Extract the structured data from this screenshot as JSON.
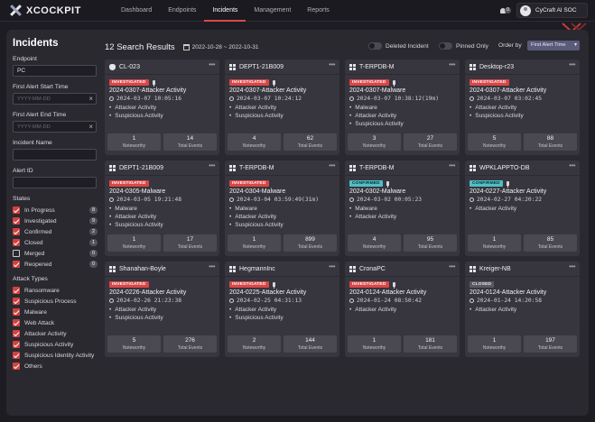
{
  "app": {
    "name": "XCOCKPIT"
  },
  "nav": [
    {
      "label": "Dashboard",
      "active": false
    },
    {
      "label": "Endpoints",
      "active": false
    },
    {
      "label": "Incidents",
      "active": true
    },
    {
      "label": "Management",
      "active": false
    },
    {
      "label": "Reports",
      "active": false
    }
  ],
  "user": {
    "name": "CyCraft AI SOC",
    "notifications": "0"
  },
  "sidebar": {
    "title": "Incidents",
    "endpoint": {
      "label": "Endpoint",
      "value": "PC"
    },
    "start_time": {
      "label": "First Alert Start Time",
      "placeholder": "YYYY-MM-DD"
    },
    "end_time": {
      "label": "First Alert End Time",
      "placeholder": "YYYY-MM-DD"
    },
    "incident_name": {
      "label": "Incident Name",
      "value": ""
    },
    "alert_id": {
      "label": "Alert ID",
      "value": ""
    },
    "states_title": "States",
    "states": [
      {
        "label": "In Progress",
        "checked": true,
        "count": "8"
      },
      {
        "label": "Investigated",
        "checked": true,
        "count": "9"
      },
      {
        "label": "Confirmed",
        "checked": true,
        "count": "2"
      },
      {
        "label": "Closed",
        "checked": true,
        "count": "1"
      },
      {
        "label": "Merged",
        "checked": false,
        "count": "0"
      },
      {
        "label": "Reopened",
        "checked": true,
        "count": "0"
      }
    ],
    "types_title": "Attack Types",
    "types": [
      {
        "label": "Ransomware",
        "checked": true
      },
      {
        "label": "Suspicious Process",
        "checked": true
      },
      {
        "label": "Malware",
        "checked": true
      },
      {
        "label": "Web Attack",
        "checked": true
      },
      {
        "label": "Attacker Activity",
        "checked": true
      },
      {
        "label": "Suspicious Activity",
        "checked": true
      },
      {
        "label": "Suspicious Identity Activity",
        "checked": true
      },
      {
        "label": "Others",
        "checked": true
      }
    ]
  },
  "results": {
    "count_label": "12 Search Results",
    "date_range": "2022-10-28 ~ 2022-10-31",
    "deleted_label": "Deleted Incident",
    "pinned_label": "Pinned Only",
    "order_label": "Order by",
    "order_value": "First Alert Time"
  },
  "cards": [
    {
      "os": "apple",
      "host": "CL-023",
      "state": "INVESTIGATED",
      "pinned": true,
      "title": "2024-0307-Attacker Activity",
      "time": "2024-03-07 10:05:16",
      "items": [
        "Attacker Activity",
        "Suspicious Activity"
      ],
      "noteworthy": "1",
      "total": "14"
    },
    {
      "os": "windows",
      "host": "DEPT1-21B009",
      "state": "INVESTIGATED",
      "pinned": true,
      "title": "2024-0307-Attacker Activity",
      "time": "2024-03-07 10:24:12",
      "items": [
        "Attacker Activity",
        "Suspicious Activity"
      ],
      "noteworthy": "4",
      "total": "62"
    },
    {
      "os": "windows",
      "host": "T-ERPDB-M",
      "state": "INVESTIGATED",
      "pinned": true,
      "title": "2024-0307-Malware",
      "time": "2024-03-07 10:38:12(19m)",
      "items": [
        "Malware",
        "Attacker Activity",
        "Suspicious Activity"
      ],
      "noteworthy": "3",
      "total": "27"
    },
    {
      "os": "windows",
      "host": "Desktop-r23",
      "state": "INVESTIGATED",
      "pinned": false,
      "title": "2024-0307-Attacker Activity",
      "time": "2024-03-07 03:02:45",
      "items": [
        "Attacker Activity",
        "Suspicious Activity"
      ],
      "noteworthy": "5",
      "total": "88"
    },
    {
      "os": "windows",
      "host": "DEPT1-21B009",
      "state": "INVESTIGATED",
      "pinned": false,
      "title": "2024-0305-Malware",
      "time": "2024-03-05 19:21:48",
      "items": [
        "Malware",
        "Attacker Activity",
        "Suspicious Activity"
      ],
      "noteworthy": "1",
      "total": "17"
    },
    {
      "os": "windows",
      "host": "T-ERPDB-M",
      "state": "INVESTIGATED",
      "pinned": false,
      "title": "2024-0304-Malware",
      "time": "2024-03-04 03:59:49(31m)",
      "items": [
        "Malware",
        "Attacker Activity",
        "Suspicious Activity"
      ],
      "noteworthy": "1",
      "total": "899"
    },
    {
      "os": "windows",
      "host": "T-ERPDB-M",
      "state": "CONFIRMED",
      "pinned": true,
      "title": "2024-0302-Malware",
      "time": "2024-03-02 00:05:23",
      "items": [
        "Malware",
        "Attacker Activity"
      ],
      "noteworthy": "4",
      "total": "95"
    },
    {
      "os": "windows",
      "host": "WPKLAPPTO-DB",
      "state": "CONFIRMED",
      "pinned": true,
      "title": "2024-0227-Attacker Activity",
      "time": "2024-02-27 04:20:22",
      "items": [
        "Attacker Activity"
      ],
      "noteworthy": "1",
      "total": "85"
    },
    {
      "os": "windows",
      "host": "Shanahan-Boyle",
      "state": "INVESTIGATED",
      "pinned": false,
      "title": "2024-0226-Attacker Activity",
      "time": "2024-02-26 21:23:38",
      "items": [
        "Attacker Activity",
        "Suspicious Activity"
      ],
      "noteworthy": "5",
      "total": "276"
    },
    {
      "os": "windows",
      "host": "HegmannInc",
      "state": "INVESTIGATED",
      "pinned": true,
      "title": "2024-0225-Attacker Activity",
      "time": "2024-02-25 04:31:13",
      "items": [
        "Attacker Activity",
        "Suspicious Activity"
      ],
      "noteworthy": "2",
      "total": "144"
    },
    {
      "os": "windows",
      "host": "CronaPC",
      "state": "INVESTIGATED",
      "pinned": true,
      "title": "2024-0124-Attacker Activity",
      "time": "2024-01-24 08:50:42",
      "items": [
        "Attacker Activity"
      ],
      "noteworthy": "1",
      "total": "181"
    },
    {
      "os": "windows",
      "host": "Kreiger-NB",
      "state": "CLOSED",
      "pinned": false,
      "title": "2024-0124-Attacker Activity",
      "time": "2024-01-24 14:20:58",
      "items": [
        "Attacker Activity"
      ],
      "noteworthy": "1",
      "total": "197"
    }
  ],
  "labels": {
    "noteworthy": "Noteworthy",
    "total": "Total Events"
  },
  "colors": {
    "accent_red": "#d94646",
    "confirmed": "#4ec0c6",
    "closed": "#5a5962",
    "background": "#1d1c22",
    "panel": "#2a2930",
    "card": "#37363e"
  }
}
